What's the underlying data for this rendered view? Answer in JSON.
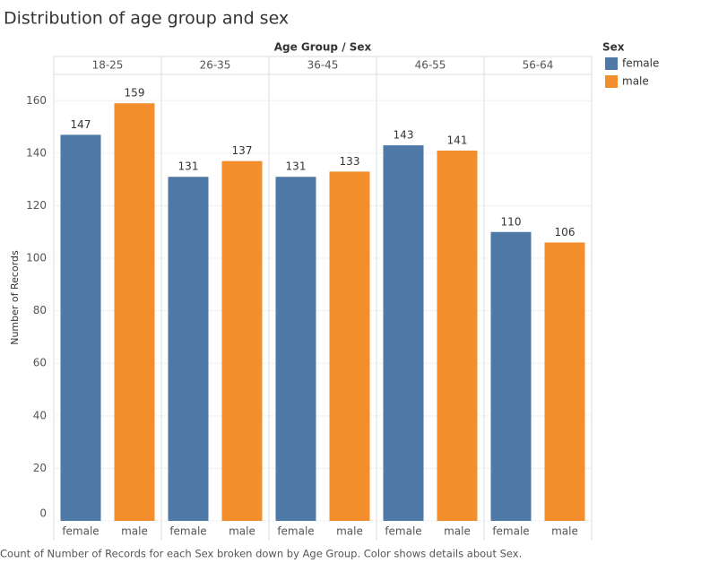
{
  "chart_data": {
    "type": "bar",
    "title": "Distribution of age group and sex",
    "x_label": "Age Group / Sex",
    "y_label": "Number of Records",
    "legend_title": "Sex",
    "caption": "Count of Number of Records for each Sex broken down by Age Group.  Color shows details about Sex.",
    "categories": [
      "18-25",
      "26-35",
      "36-45",
      "46-55",
      "56-64"
    ],
    "series": [
      {
        "name": "female",
        "color": "#4e79a7",
        "values": [
          147,
          131,
          131,
          143,
          110
        ]
      },
      {
        "name": "male",
        "color": "#f28e2b",
        "values": [
          159,
          137,
          133,
          141,
          106
        ]
      }
    ],
    "ylim": [
      0,
      170
    ],
    "yticks": [
      0,
      20,
      40,
      60,
      80,
      100,
      120,
      140,
      160
    ],
    "grid": true,
    "legend_position": "right"
  }
}
